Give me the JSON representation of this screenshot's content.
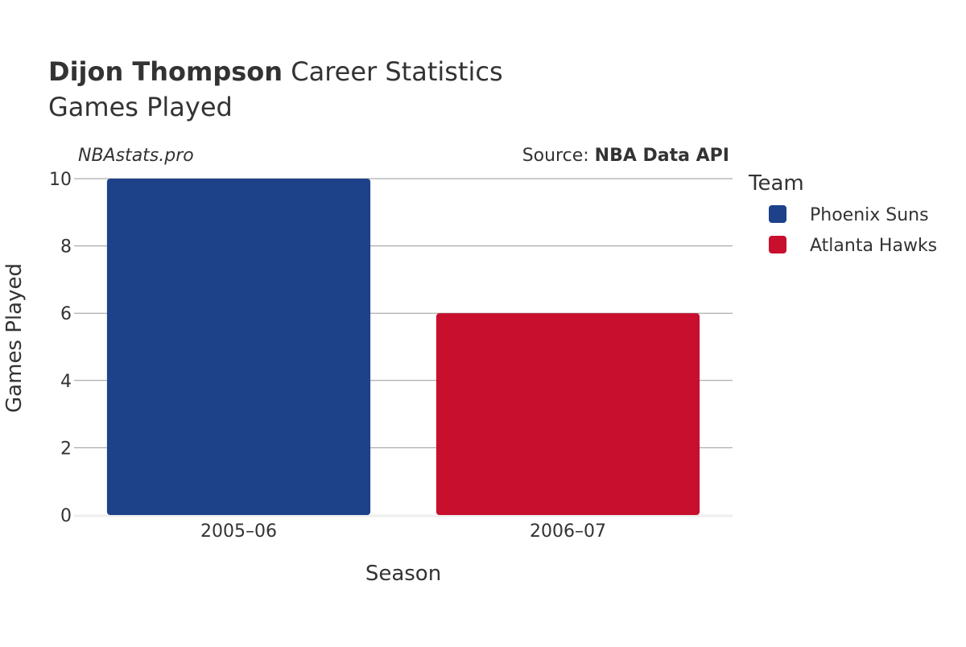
{
  "header": {
    "player_name": "Dijon Thompson",
    "title_suffix": " Career Statistics",
    "subtitle": "Games Played"
  },
  "credits": {
    "site": "NBAstats.pro",
    "source_prefix": "Source: ",
    "source_name": "NBA Data API"
  },
  "legend": {
    "title": "Team",
    "placement": "right"
  },
  "colors": {
    "phoenix_suns": "#1d428a",
    "atlanta_hawks": "#c8102e",
    "gridline": "#999999",
    "baseline": "#eeeeee",
    "text": "#333333"
  },
  "chart_data": {
    "type": "bar",
    "title": "Dijon Thompson Career Statistics",
    "subtitle": "Games Played",
    "xlabel": "Season",
    "ylabel": "Games Played",
    "categories": [
      "2005–06",
      "2006–07"
    ],
    "ylim": [
      0,
      10
    ],
    "yticks": [
      0,
      2,
      4,
      6,
      8,
      10
    ],
    "grid": true,
    "series": [
      {
        "name": "Phoenix Suns",
        "color": "#1d428a",
        "values": [
          10,
          null
        ]
      },
      {
        "name": "Atlanta Hawks",
        "color": "#c8102e",
        "values": [
          null,
          6
        ]
      }
    ]
  }
}
